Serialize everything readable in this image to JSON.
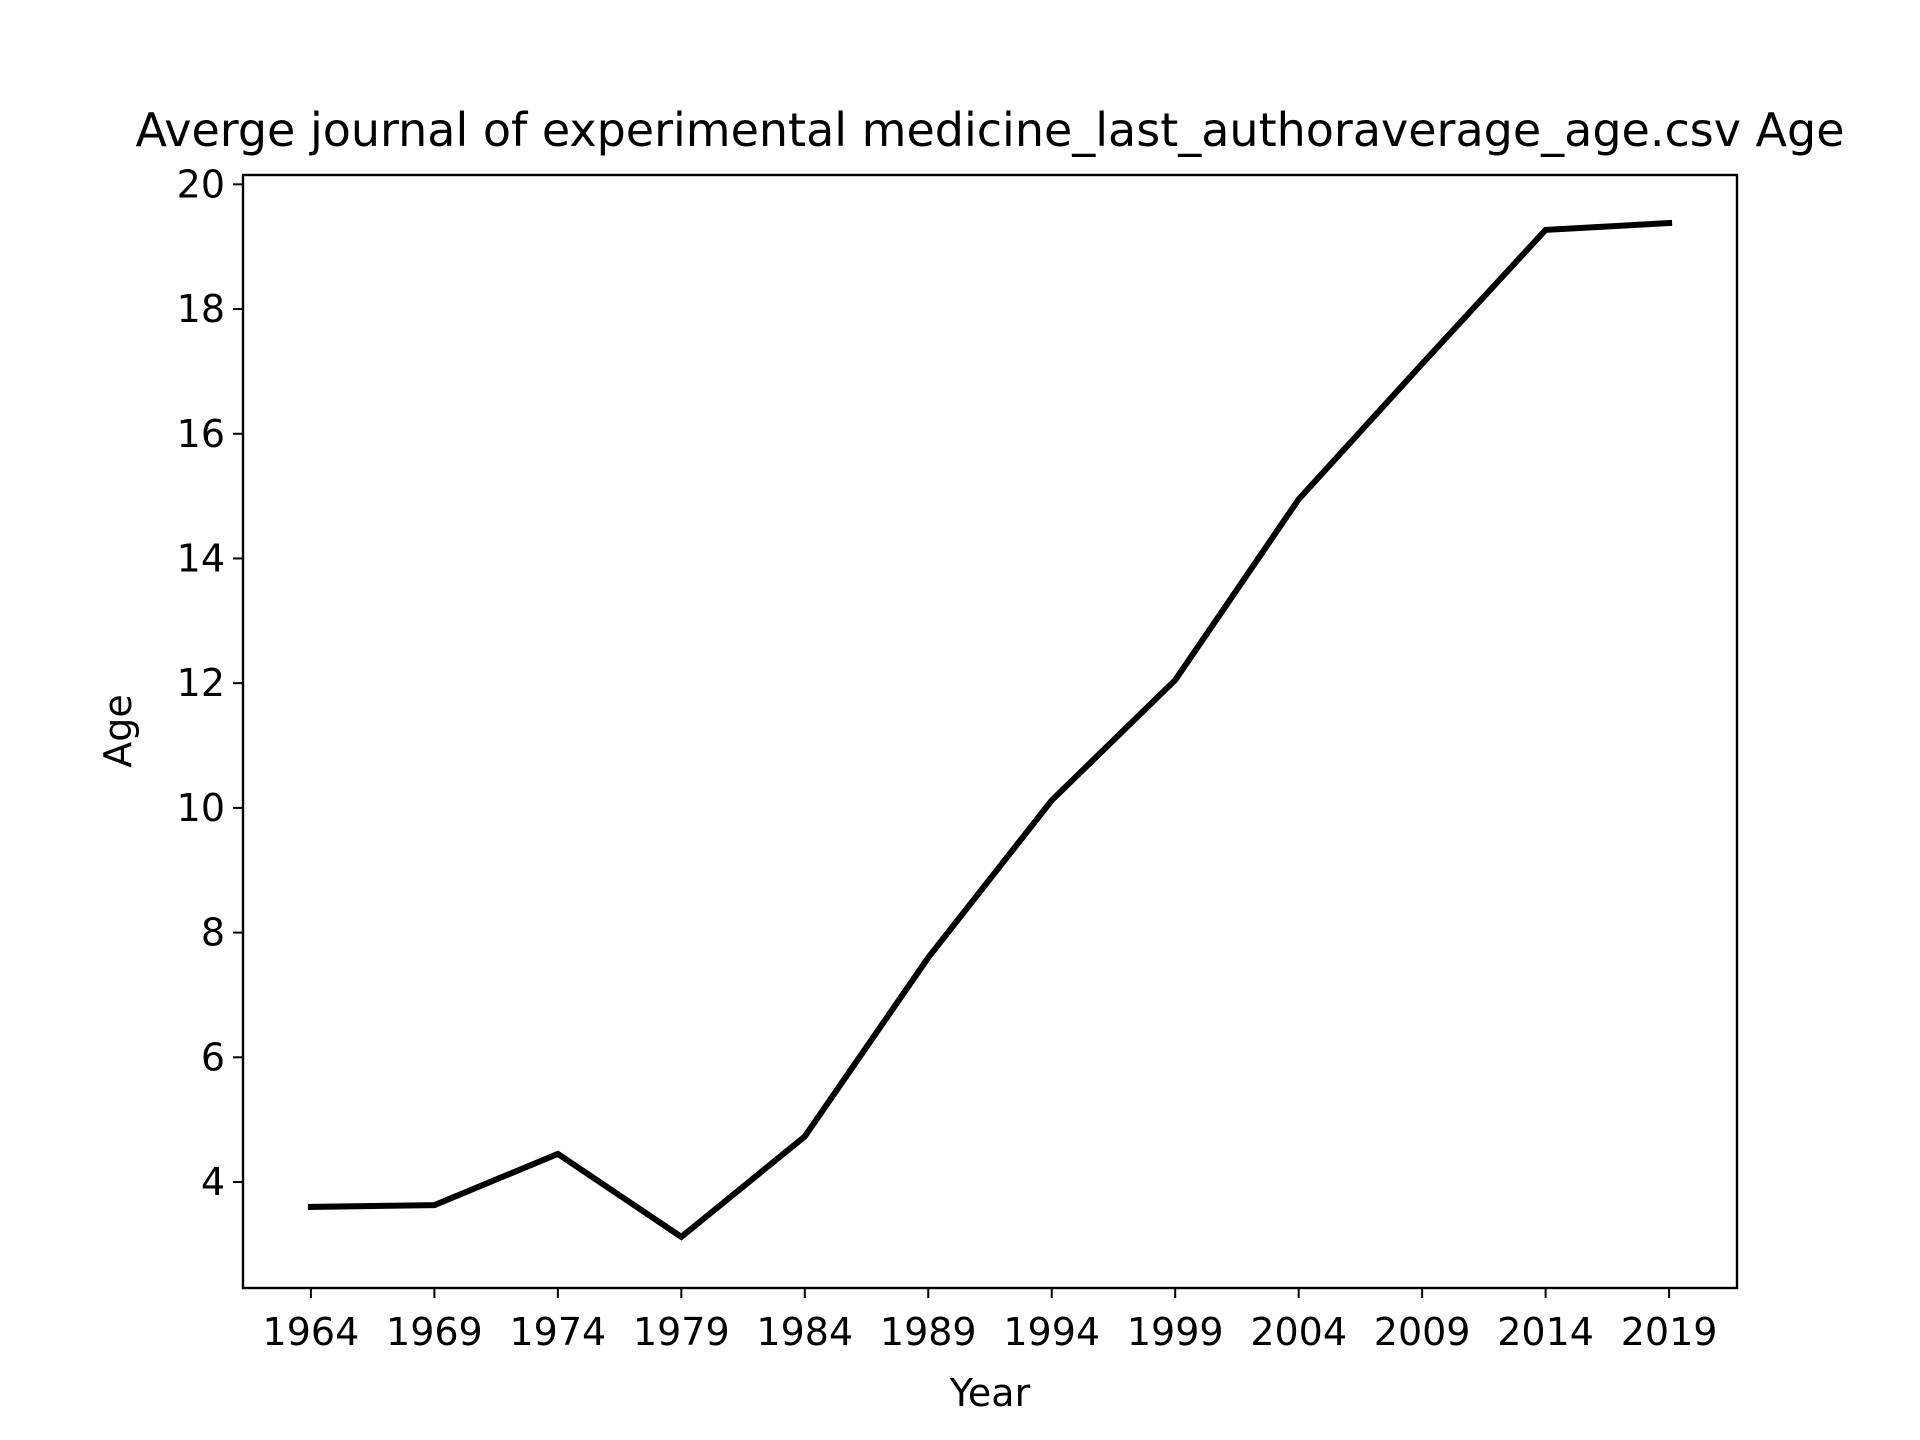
{
  "chart_data": {
    "type": "line",
    "title": "Averge journal of experimental medicine_last_authoraverage_age.csv Age",
    "xlabel": "Year",
    "ylabel": "Age",
    "x": [
      1964,
      1969,
      1974,
      1979,
      1984,
      1989,
      1994,
      1999,
      2004,
      2009,
      2014,
      2019
    ],
    "series": [
      {
        "values": [
          3.6,
          3.63,
          4.45,
          3.12,
          4.73,
          7.6,
          10.12,
          12.05,
          14.95,
          17.12,
          19.27,
          19.38
        ],
        "color": "#000000"
      }
    ],
    "xticks": [
      1964,
      1969,
      1974,
      1979,
      1984,
      1989,
      1994,
      1999,
      2004,
      2009,
      2014,
      2019
    ],
    "yticks": [
      4,
      6,
      8,
      10,
      12,
      14,
      16,
      18,
      20
    ],
    "xlim": [
      1961.25,
      2021.75
    ],
    "ylim": [
      2.3,
      20.15
    ],
    "grid": false,
    "legend": false
  }
}
